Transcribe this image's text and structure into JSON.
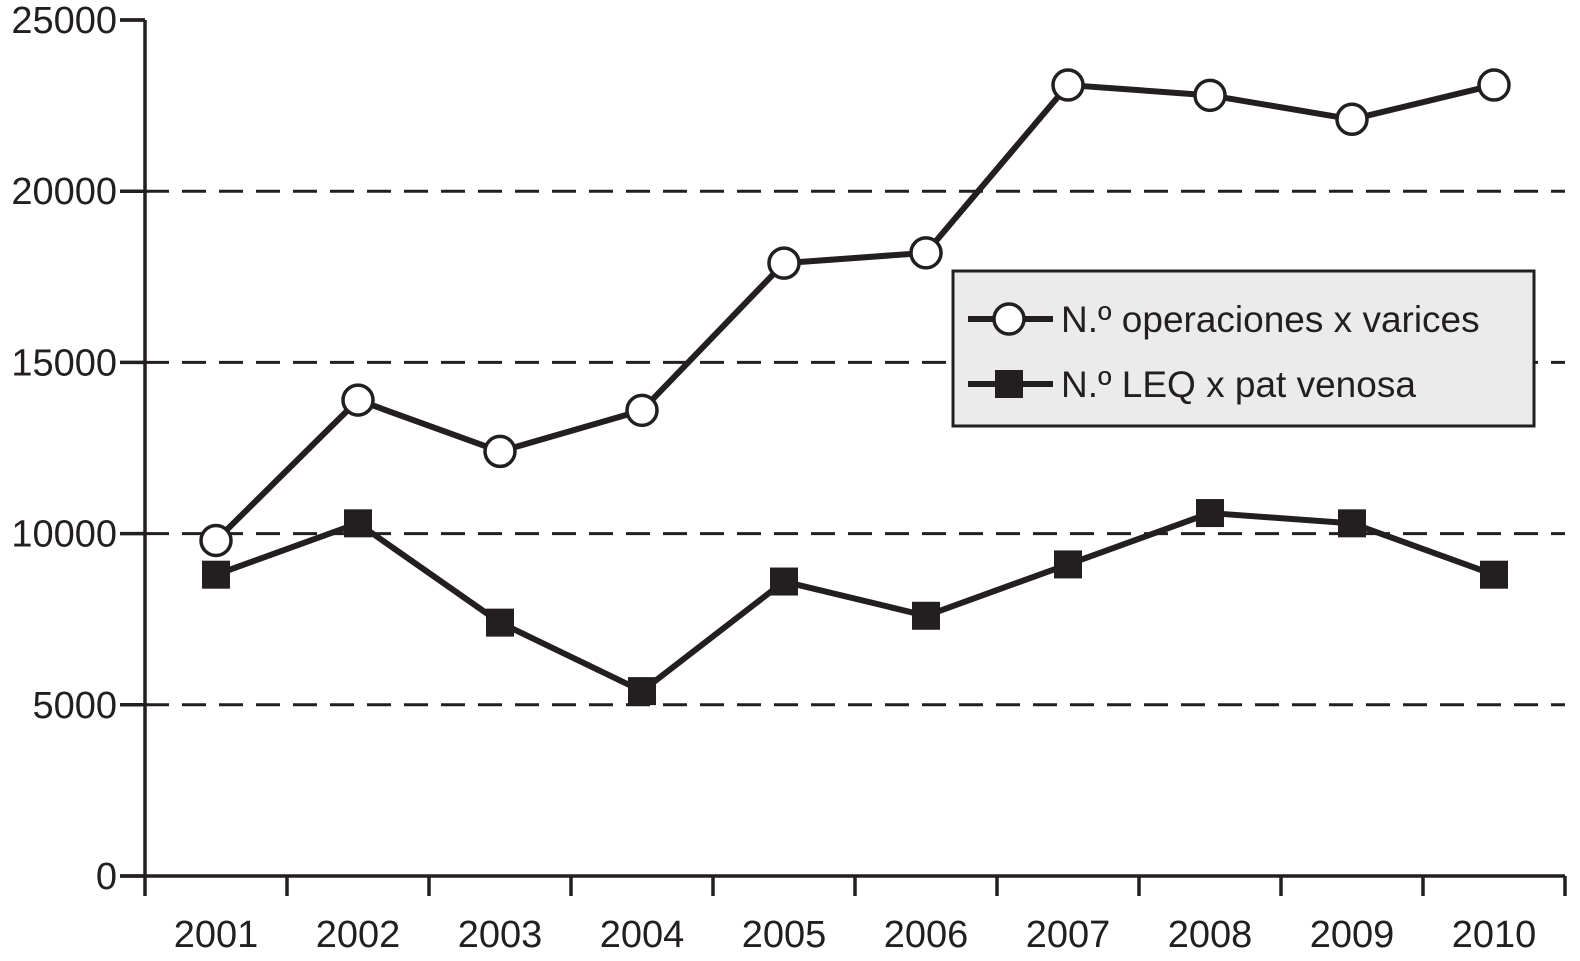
{
  "chart_data": {
    "type": "line",
    "title": "",
    "xlabel": "",
    "ylabel": "",
    "categories": [
      "2001",
      "2002",
      "2003",
      "2004",
      "2005",
      "2006",
      "2007",
      "2008",
      "2009",
      "2010"
    ],
    "ylim": [
      0,
      25000
    ],
    "yticks": [
      0,
      5000,
      10000,
      15000,
      20000,
      25000
    ],
    "ytick_labels": [
      "0",
      "5000",
      "10000",
      "15000",
      "20000",
      "25000"
    ],
    "grid": "horizontal dashed",
    "legend_position": "right, upper middle",
    "series": [
      {
        "name": "N.º operaciones x varices",
        "marker": "open-circle",
        "values": [
          9800,
          13900,
          12400,
          13600,
          17900,
          18200,
          23100,
          22800,
          22100,
          23100
        ]
      },
      {
        "name": "N.º LEQ x pat venosa",
        "marker": "filled-square",
        "values": [
          8800,
          10300,
          7400,
          5400,
          8600,
          7600,
          9100,
          10600,
          10300,
          8800
        ]
      }
    ],
    "colors": {
      "ink": "#231f20",
      "legend_background": "#ebebeb",
      "marker_fill_open": "#ffffff"
    }
  }
}
